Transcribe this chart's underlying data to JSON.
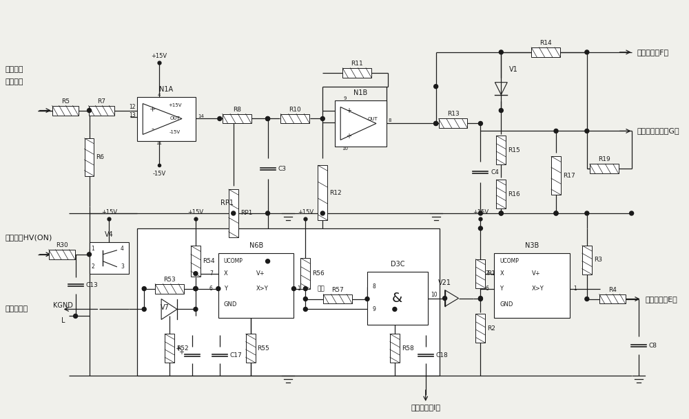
{
  "bg_color": "#f0f0eb",
  "line_color": "#1a1a1a",
  "text_color": "#1a1a1a",
  "fig_width": 10.0,
  "fig_height": 6.09,
  "dpi": 100,
  "labels": {
    "high_voltage_1": "高压电源",
    "high_voltage_2": "输出取样",
    "power_on": "电源开机HV(ON)",
    "protect": "接保护电路",
    "protect_L": "L",
    "kgnd": "KGND",
    "to_protect_F": "去保护电路F点",
    "to_signal_G": "去信号产生电路G点",
    "to_drive_E": "去驱动电路E点",
    "to_protect_I": "去保护电路I点",
    "da_ya": "大压"
  }
}
